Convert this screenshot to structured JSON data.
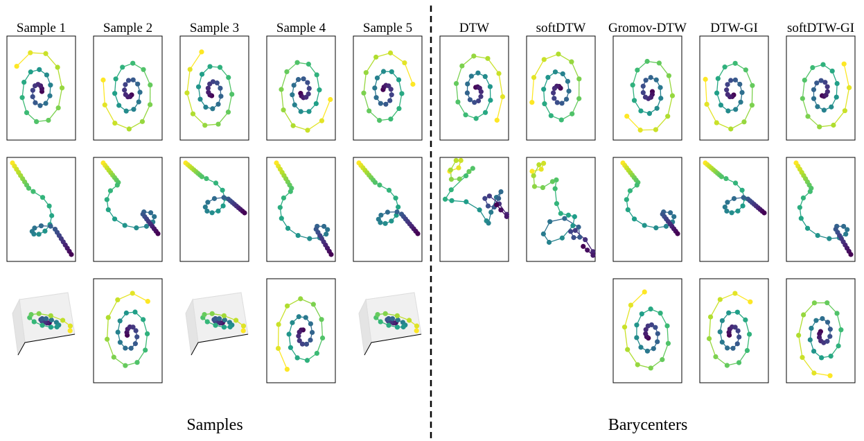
{
  "columns": [
    "Sample 1",
    "Sample 2",
    "Sample 3",
    "Sample 4",
    "Sample 5",
    "DTW",
    "softDTW",
    "Gromov-DTW",
    "DTW-GI",
    "softDTW-GI"
  ],
  "groups": [
    "Samples",
    "Barycenters"
  ]
}
